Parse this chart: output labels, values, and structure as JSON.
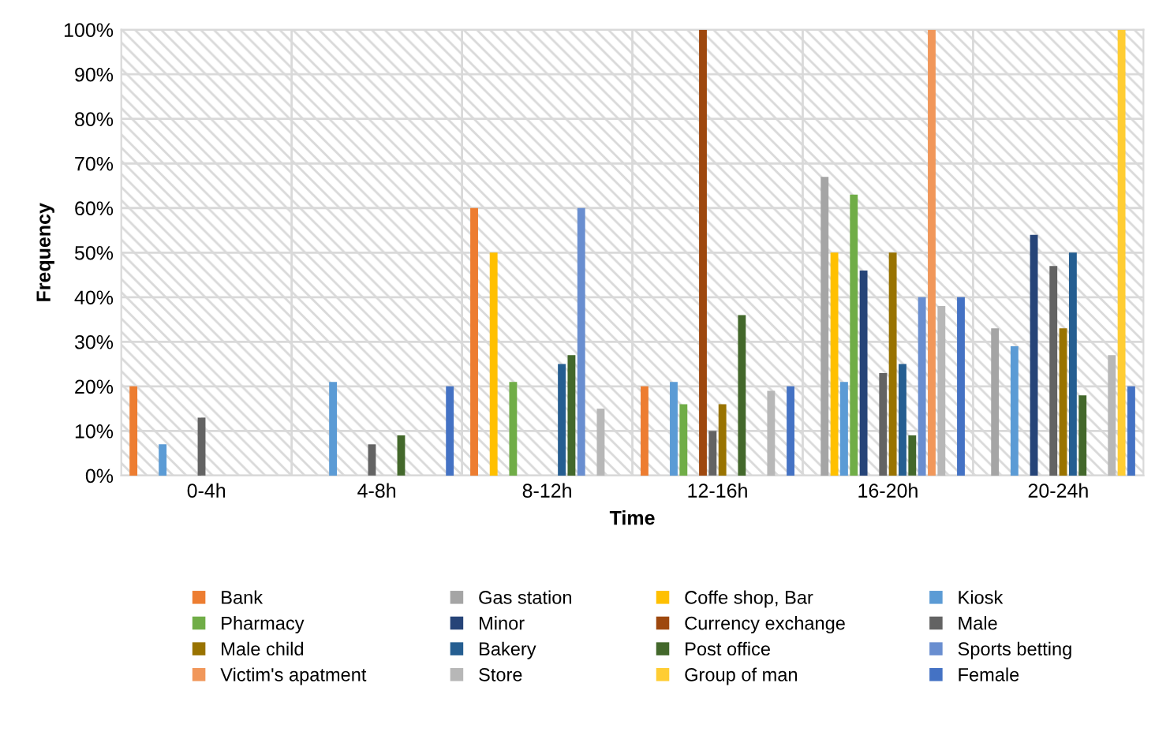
{
  "chart_data": {
    "type": "bar",
    "xlabel": "Time",
    "ylabel": "Frequency",
    "categories": [
      "0-4h",
      "4-8h",
      "8-12h",
      "12-16h",
      "16-20h",
      "20-24h"
    ],
    "ylim": [
      0,
      100
    ],
    "yticks": [
      {
        "value": 0,
        "label": "0%"
      },
      {
        "value": 10,
        "label": "10%"
      },
      {
        "value": 20,
        "label": "20%"
      },
      {
        "value": 30,
        "label": "30%"
      },
      {
        "value": 40,
        "label": "40%"
      },
      {
        "value": 50,
        "label": "50%"
      },
      {
        "value": 60,
        "label": "60%"
      },
      {
        "value": 70,
        "label": "70%"
      },
      {
        "value": 80,
        "label": "80%"
      },
      {
        "value": 90,
        "label": "90%"
      },
      {
        "value": 100,
        "label": "100%"
      }
    ],
    "grid": true,
    "legend": "bottom",
    "series": [
      {
        "name": "Bank",
        "color": "#ed7d31",
        "values": [
          20,
          null,
          60,
          20,
          null,
          null
        ]
      },
      {
        "name": "Gas station",
        "color": "#a5a5a5",
        "values": [
          null,
          null,
          null,
          null,
          67,
          33
        ]
      },
      {
        "name": "Coffe shop, Bar",
        "color": "#ffc000",
        "values": [
          null,
          null,
          50,
          null,
          50,
          null
        ]
      },
      {
        "name": "Kiosk",
        "color": "#5b9bd5",
        "values": [
          7,
          21,
          null,
          21,
          21,
          29
        ]
      },
      {
        "name": "Pharmacy",
        "color": "#70ad47",
        "values": [
          null,
          null,
          21,
          16,
          63,
          null
        ]
      },
      {
        "name": "Minor",
        "color": "#264478",
        "values": [
          null,
          null,
          null,
          null,
          46,
          54
        ]
      },
      {
        "name": "Currency exchange",
        "color": "#9e480e",
        "values": [
          null,
          null,
          null,
          100,
          null,
          null
        ]
      },
      {
        "name": "Male",
        "color": "#636363",
        "values": [
          13,
          7,
          null,
          10,
          23,
          47
        ]
      },
      {
        "name": "Male child",
        "color": "#997300",
        "values": [
          null,
          null,
          null,
          16,
          50,
          33
        ]
      },
      {
        "name": "Bakery",
        "color": "#255e91",
        "values": [
          null,
          null,
          25,
          null,
          25,
          50
        ]
      },
      {
        "name": "Post office",
        "color": "#43682b",
        "values": [
          null,
          9,
          27,
          36,
          9,
          18
        ]
      },
      {
        "name": "Sports betting",
        "color": "#698ed0",
        "values": [
          null,
          null,
          60,
          null,
          40,
          null
        ]
      },
      {
        "name": "Victim's apatment",
        "color": "#f1975a",
        "values": [
          null,
          null,
          null,
          null,
          100,
          null
        ]
      },
      {
        "name": "Store",
        "color": "#b7b7b7",
        "values": [
          null,
          null,
          15,
          19,
          38,
          27
        ]
      },
      {
        "name": "Group of man",
        "color": "#ffcd33",
        "values": [
          null,
          null,
          null,
          null,
          null,
          100
        ]
      },
      {
        "name": "Female",
        "color": "#4472c4",
        "values": [
          null,
          20,
          null,
          20,
          40,
          20
        ]
      }
    ]
  }
}
